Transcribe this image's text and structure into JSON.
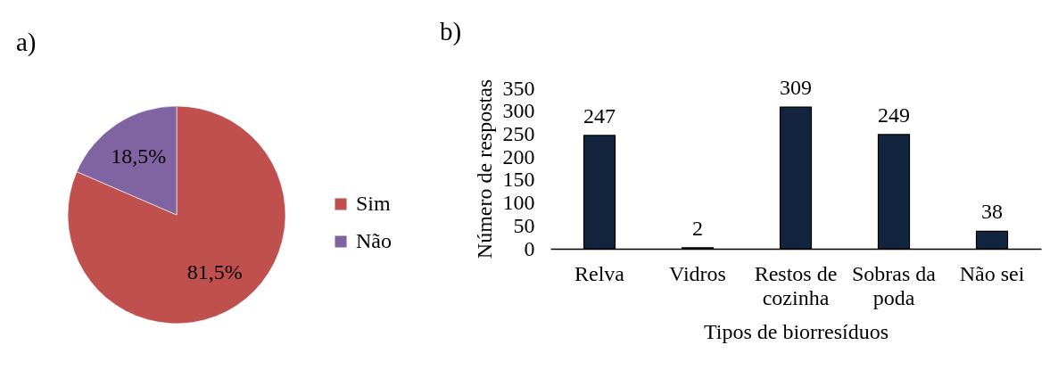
{
  "chart_data": [
    {
      "type": "pie",
      "title": "a)",
      "categories": [
        "Sim",
        "Não"
      ],
      "values": [
        81.5,
        18.5
      ],
      "colors": [
        "#c0504d",
        "#8064a2"
      ],
      "value_labels": [
        "81,5%",
        "18,5%"
      ],
      "legend": "right"
    },
    {
      "type": "bar",
      "title": "b)",
      "categories": [
        "Relva",
        "Vidros",
        "Restos de cozinha",
        "Sobras da poda",
        "Não sei"
      ],
      "values": [
        247,
        2,
        309,
        249,
        38
      ],
      "color": "#12243e",
      "data_labels": true,
      "ylim": [
        0,
        350
      ],
      "yticks": [
        0,
        50,
        100,
        150,
        200,
        250,
        300,
        350
      ],
      "xlabel": "Tipos de biorresíduos",
      "ylabel": "Número de respostas",
      "grid": false
    }
  ]
}
